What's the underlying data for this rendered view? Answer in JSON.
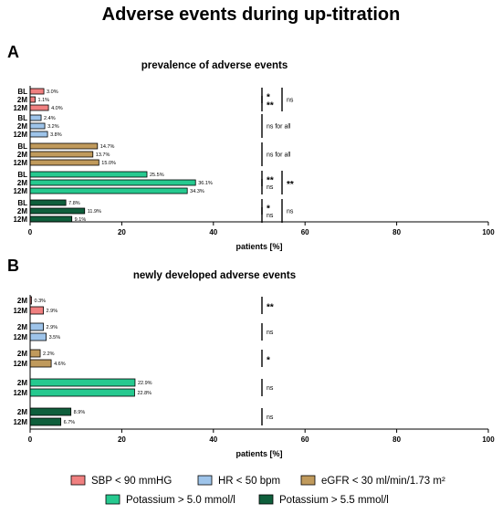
{
  "title": "Adverse events during up-titration",
  "colors": {
    "sbp": "#f08080",
    "hr": "#9ec4ea",
    "egfr": "#c09a5c",
    "k50": "#26c98f",
    "k55": "#0f5f3c"
  },
  "legend": [
    {
      "key": "sbp",
      "label": "SBP < 90 mmHG"
    },
    {
      "key": "hr",
      "label": "HR < 50 bpm"
    },
    {
      "key": "egfr",
      "label": "eGFR < 30 ml/min/1.73 m²"
    },
    {
      "key": "k50",
      "label": "Potassium > 5.0 mmol/l"
    },
    {
      "key": "k55",
      "label": "Potassium > 5.5 mmol/l"
    }
  ],
  "chart_data": [
    {
      "type": "bar",
      "orientation": "horizontal",
      "panel": "A",
      "title": "prevalence of adverse events",
      "xlabel": "patients [%]",
      "xlim": [
        0,
        100
      ],
      "xticks": [
        0,
        20,
        40,
        60,
        80,
        100
      ],
      "groups": [
        {
          "key": "sbp",
          "bars": [
            {
              "label": "BL",
              "value": 3.0,
              "text": "3.0%"
            },
            {
              "label": "2M",
              "value": 1.1,
              "text": "1.1%"
            },
            {
              "label": "12M",
              "value": 4.0,
              "text": "4.0%"
            }
          ],
          "sig": [
            {
              "text": "*",
              "span": [
                0,
                1
              ],
              "col": 0
            },
            {
              "text": "**",
              "span": [
                1,
                2
              ],
              "col": 0
            },
            {
              "text": "ns",
              "span": [
                0,
                2
              ],
              "col": 1
            }
          ]
        },
        {
          "key": "hr",
          "bars": [
            {
              "label": "BL",
              "value": 2.4,
              "text": "2.4%"
            },
            {
              "label": "2M",
              "value": 3.2,
              "text": "3.2%"
            },
            {
              "label": "12M",
              "value": 3.8,
              "text": "3.8%"
            }
          ],
          "sig": [
            {
              "text": "ns for all",
              "span": [
                0,
                2
              ],
              "col": 0
            }
          ]
        },
        {
          "key": "egfr",
          "bars": [
            {
              "label": "BL",
              "value": 14.7,
              "text": "14.7%"
            },
            {
              "label": "2M",
              "value": 13.7,
              "text": "13.7%"
            },
            {
              "label": "12M",
              "value": 15.0,
              "text": "15.0%"
            }
          ],
          "sig": [
            {
              "text": "ns for all",
              "span": [
                0,
                2
              ],
              "col": 0
            }
          ]
        },
        {
          "key": "k50",
          "bars": [
            {
              "label": "BL",
              "value": 25.5,
              "text": "25.5%"
            },
            {
              "label": "2M",
              "value": 36.1,
              "text": "36.1%"
            },
            {
              "label": "12M",
              "value": 34.3,
              "text": "34.3%"
            }
          ],
          "sig": [
            {
              "text": "**",
              "span": [
                0,
                1
              ],
              "col": 0
            },
            {
              "text": "ns",
              "span": [
                1,
                2
              ],
              "col": 0
            },
            {
              "text": "**",
              "span": [
                0,
                2
              ],
              "col": 1
            }
          ]
        },
        {
          "key": "k55",
          "bars": [
            {
              "label": "BL",
              "value": 7.8,
              "text": "7.8%"
            },
            {
              "label": "2M",
              "value": 11.9,
              "text": "11.9%"
            },
            {
              "label": "12M",
              "value": 9.1,
              "text": "9.1%"
            }
          ],
          "sig": [
            {
              "text": "*",
              "span": [
                0,
                1
              ],
              "col": 0
            },
            {
              "text": "ns",
              "span": [
                1,
                2
              ],
              "col": 0
            },
            {
              "text": "ns",
              "span": [
                0,
                2
              ],
              "col": 1
            }
          ]
        }
      ]
    },
    {
      "type": "bar",
      "orientation": "horizontal",
      "panel": "B",
      "title": "newly developed adverse events",
      "xlabel": "patients [%]",
      "xlim": [
        0,
        100
      ],
      "xticks": [
        0,
        20,
        40,
        60,
        80,
        100
      ],
      "groups": [
        {
          "key": "sbp",
          "bars": [
            {
              "label": "2M",
              "value": 0.3,
              "text": "0.3%"
            },
            {
              "label": "12M",
              "value": 2.9,
              "text": "2.9%"
            }
          ],
          "sig": [
            {
              "text": "**",
              "span": [
                0,
                1
              ],
              "col": 0
            }
          ]
        },
        {
          "key": "hr",
          "bars": [
            {
              "label": "2M",
              "value": 2.9,
              "text": "2.9%"
            },
            {
              "label": "12M",
              "value": 3.5,
              "text": "3.5%"
            }
          ],
          "sig": [
            {
              "text": "ns",
              "span": [
                0,
                1
              ],
              "col": 0
            }
          ]
        },
        {
          "key": "egfr",
          "bars": [
            {
              "label": "2M",
              "value": 2.2,
              "text": "2.2%"
            },
            {
              "label": "12M",
              "value": 4.6,
              "text": "4.6%"
            }
          ],
          "sig": [
            {
              "text": "*",
              "span": [
                0,
                1
              ],
              "col": 0
            }
          ]
        },
        {
          "key": "k50",
          "bars": [
            {
              "label": "2M",
              "value": 22.9,
              "text": "22.9%"
            },
            {
              "label": "12M",
              "value": 22.8,
              "text": "22.8%"
            }
          ],
          "sig": [
            {
              "text": "ns",
              "span": [
                0,
                1
              ],
              "col": 0
            }
          ]
        },
        {
          "key": "k55",
          "bars": [
            {
              "label": "2M",
              "value": 8.9,
              "text": "8.9%"
            },
            {
              "label": "12M",
              "value": 6.7,
              "text": "6.7%"
            }
          ],
          "sig": [
            {
              "text": "ns",
              "span": [
                0,
                1
              ],
              "col": 0
            }
          ]
        }
      ]
    }
  ]
}
